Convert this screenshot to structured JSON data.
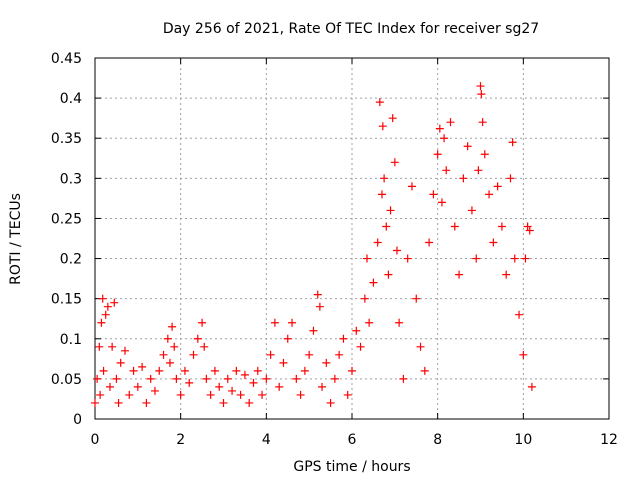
{
  "chart_data": {
    "type": "scatter",
    "title": "Day 256 of 2021, Rate Of TEC Index for receiver sg27",
    "xlabel": "GPS time / hours",
    "ylabel": "ROTI / TECUs",
    "xlim": [
      0,
      12
    ],
    "ylim": [
      0,
      0.45
    ],
    "xticks": [
      "0",
      "2",
      "4",
      "6",
      "8",
      "10",
      "12"
    ],
    "xtick_values": [
      0,
      2,
      4,
      6,
      8,
      10,
      12
    ],
    "yticks": [
      "0",
      "0.05",
      "0.1",
      "0.15",
      "0.2",
      "0.25",
      "0.3",
      "0.35",
      "0.4",
      "0.45"
    ],
    "ytick_values": [
      0,
      0.05,
      0.1,
      0.15,
      0.2,
      0.25,
      0.3,
      0.35,
      0.4,
      0.45
    ],
    "grid": true,
    "marker": "+",
    "color": "#ff0000",
    "series": [
      {
        "name": "ROTI",
        "points": [
          [
            0.0,
            0.02
          ],
          [
            0.05,
            0.05
          ],
          [
            0.1,
            0.09
          ],
          [
            0.12,
            0.03
          ],
          [
            0.15,
            0.12
          ],
          [
            0.18,
            0.15
          ],
          [
            0.2,
            0.06
          ],
          [
            0.25,
            0.13
          ],
          [
            0.3,
            0.14
          ],
          [
            0.35,
            0.04
          ],
          [
            0.4,
            0.09
          ],
          [
            0.45,
            0.145
          ],
          [
            0.5,
            0.05
          ],
          [
            0.55,
            0.02
          ],
          [
            0.6,
            0.07
          ],
          [
            0.7,
            0.085
          ],
          [
            0.8,
            0.03
          ],
          [
            0.9,
            0.06
          ],
          [
            1.0,
            0.04
          ],
          [
            1.1,
            0.065
          ],
          [
            1.2,
            0.02
          ],
          [
            1.3,
            0.05
          ],
          [
            1.4,
            0.035
          ],
          [
            1.5,
            0.06
          ],
          [
            1.6,
            0.08
          ],
          [
            1.7,
            0.1
          ],
          [
            1.75,
            0.07
          ],
          [
            1.8,
            0.115
          ],
          [
            1.85,
            0.09
          ],
          [
            1.9,
            0.05
          ],
          [
            2.0,
            0.03
          ],
          [
            2.1,
            0.06
          ],
          [
            2.2,
            0.045
          ],
          [
            2.3,
            0.08
          ],
          [
            2.4,
            0.1
          ],
          [
            2.5,
            0.12
          ],
          [
            2.55,
            0.09
          ],
          [
            2.6,
            0.05
          ],
          [
            2.7,
            0.03
          ],
          [
            2.8,
            0.06
          ],
          [
            2.9,
            0.04
          ],
          [
            3.0,
            0.02
          ],
          [
            3.1,
            0.05
          ],
          [
            3.2,
            0.035
          ],
          [
            3.3,
            0.06
          ],
          [
            3.4,
            0.03
          ],
          [
            3.5,
            0.055
          ],
          [
            3.6,
            0.02
          ],
          [
            3.7,
            0.045
          ],
          [
            3.8,
            0.06
          ],
          [
            3.9,
            0.03
          ],
          [
            4.0,
            0.05
          ],
          [
            4.1,
            0.08
          ],
          [
            4.2,
            0.12
          ],
          [
            4.3,
            0.04
          ],
          [
            4.4,
            0.07
          ],
          [
            4.5,
            0.1
          ],
          [
            4.6,
            0.12
          ],
          [
            4.7,
            0.05
          ],
          [
            4.8,
            0.03
          ],
          [
            4.9,
            0.06
          ],
          [
            5.0,
            0.08
          ],
          [
            5.1,
            0.11
          ],
          [
            5.2,
            0.155
          ],
          [
            5.25,
            0.14
          ],
          [
            5.3,
            0.04
          ],
          [
            5.4,
            0.07
          ],
          [
            5.5,
            0.02
          ],
          [
            5.6,
            0.05
          ],
          [
            5.7,
            0.08
          ],
          [
            5.8,
            0.1
          ],
          [
            5.9,
            0.03
          ],
          [
            6.0,
            0.06
          ],
          [
            6.1,
            0.11
          ],
          [
            6.2,
            0.09
          ],
          [
            6.3,
            0.15
          ],
          [
            6.35,
            0.2
          ],
          [
            6.4,
            0.12
          ],
          [
            6.5,
            0.17
          ],
          [
            6.6,
            0.22
          ],
          [
            6.65,
            0.395
          ],
          [
            6.7,
            0.28
          ],
          [
            6.72,
            0.365
          ],
          [
            6.75,
            0.3
          ],
          [
            6.8,
            0.24
          ],
          [
            6.85,
            0.18
          ],
          [
            6.9,
            0.26
          ],
          [
            6.95,
            0.375
          ],
          [
            7.0,
            0.32
          ],
          [
            7.05,
            0.21
          ],
          [
            7.1,
            0.12
          ],
          [
            7.2,
            0.05
          ],
          [
            7.3,
            0.2
          ],
          [
            7.4,
            0.29
          ],
          [
            7.5,
            0.15
          ],
          [
            7.6,
            0.09
          ],
          [
            7.7,
            0.06
          ],
          [
            7.8,
            0.22
          ],
          [
            7.9,
            0.28
          ],
          [
            8.0,
            0.33
          ],
          [
            8.05,
            0.362
          ],
          [
            8.1,
            0.27
          ],
          [
            8.15,
            0.35
          ],
          [
            8.2,
            0.31
          ],
          [
            8.3,
            0.37
          ],
          [
            8.4,
            0.24
          ],
          [
            8.5,
            0.18
          ],
          [
            8.6,
            0.3
          ],
          [
            8.7,
            0.34
          ],
          [
            8.8,
            0.26
          ],
          [
            8.9,
            0.2
          ],
          [
            8.95,
            0.31
          ],
          [
            9.0,
            0.415
          ],
          [
            9.02,
            0.405
          ],
          [
            9.05,
            0.37
          ],
          [
            9.1,
            0.33
          ],
          [
            9.2,
            0.28
          ],
          [
            9.3,
            0.22
          ],
          [
            9.4,
            0.29
          ],
          [
            9.5,
            0.24
          ],
          [
            9.6,
            0.18
          ],
          [
            9.7,
            0.3
          ],
          [
            9.75,
            0.345
          ],
          [
            9.8,
            0.2
          ],
          [
            9.9,
            0.13
          ],
          [
            10.0,
            0.08
          ],
          [
            10.05,
            0.2
          ],
          [
            10.1,
            0.24
          ],
          [
            10.15,
            0.235
          ],
          [
            10.2,
            0.04
          ]
        ]
      }
    ]
  }
}
